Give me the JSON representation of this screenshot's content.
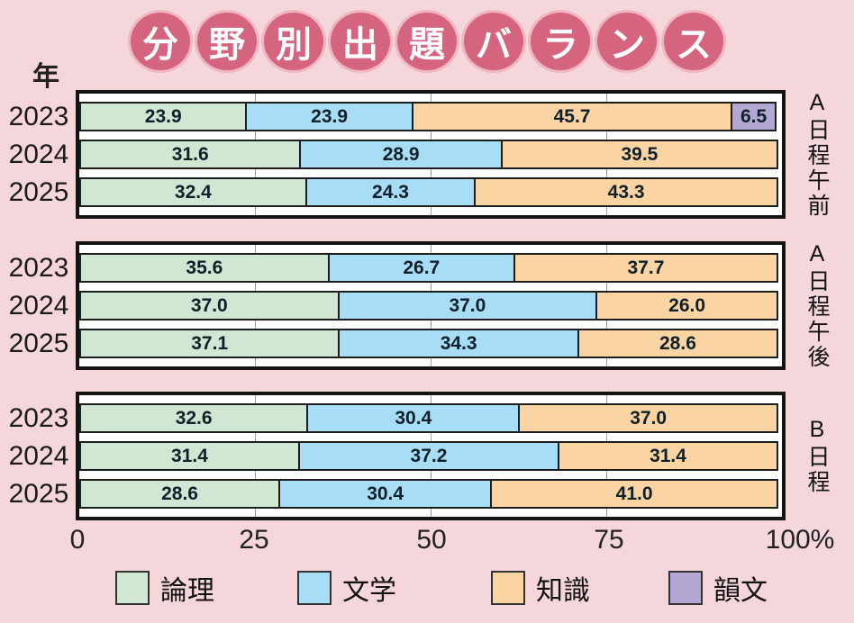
{
  "page": {
    "background_color": "#f5d6da"
  },
  "title": {
    "text": "分野別出題バランス",
    "circle_color": "#d5647e",
    "ring_color": "#f1b6c3",
    "text_color": "#ffffff"
  },
  "year_axis_label": "年",
  "chart_data": {
    "type": "bar",
    "variant": "horizontal-stacked",
    "unit": "%",
    "xlim": [
      0,
      100
    ],
    "x_ticks": [
      "0",
      "25",
      "50",
      "75",
      "100%"
    ],
    "grid": {
      "vertical_lines_at": [
        25,
        50,
        75
      ]
    },
    "series_names": [
      "論理",
      "文学",
      "知識",
      "韻文"
    ],
    "series_colors": [
      "#cfe7d3",
      "#a8def5",
      "#fbd4a3",
      "#b3a7d3"
    ],
    "groups": [
      {
        "label": "A日程午前",
        "rows": [
          {
            "year": "2023",
            "values": [
              23.9,
              23.9,
              45.7,
              6.5
            ]
          },
          {
            "year": "2024",
            "values": [
              31.6,
              28.9,
              39.5
            ]
          },
          {
            "year": "2025",
            "values": [
              32.4,
              24.3,
              43.3
            ]
          }
        ]
      },
      {
        "label": "A日程午後",
        "rows": [
          {
            "year": "2023",
            "values": [
              35.6,
              26.7,
              37.7
            ]
          },
          {
            "year": "2024",
            "values": [
              37.0,
              37.0,
              26.0
            ]
          },
          {
            "year": "2025",
            "values": [
              37.1,
              34.3,
              28.6
            ]
          }
        ]
      },
      {
        "label": "B日程",
        "rows": [
          {
            "year": "2023",
            "values": [
              32.6,
              30.4,
              37.0
            ]
          },
          {
            "year": "2024",
            "values": [
              31.4,
              37.2,
              31.4
            ]
          },
          {
            "year": "2025",
            "values": [
              28.6,
              30.4,
              41.0
            ]
          }
        ]
      }
    ],
    "legend": [
      {
        "label": "論理",
        "color": "#cfe7d3"
      },
      {
        "label": "文学",
        "color": "#a8def5"
      },
      {
        "label": "知識",
        "color": "#fbd4a3"
      },
      {
        "label": "韻文",
        "color": "#b3a7d3"
      }
    ],
    "legend_position": "bottom"
  }
}
